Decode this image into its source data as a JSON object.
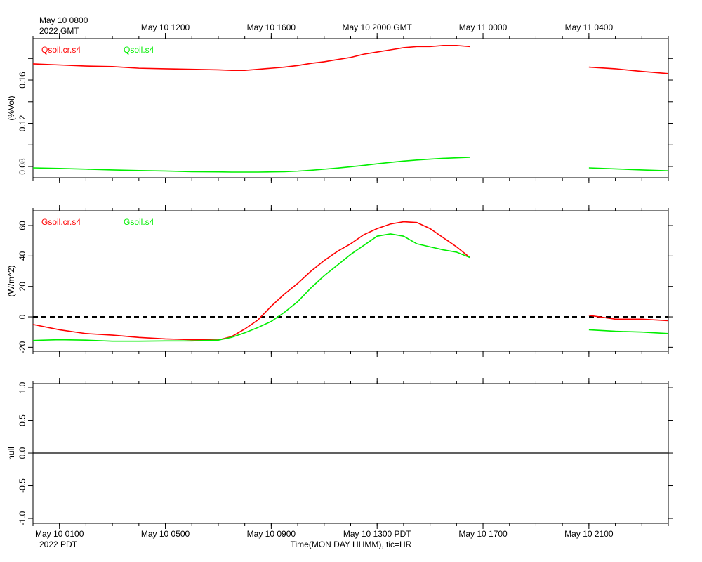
{
  "x_axis": {
    "xlim": [
      0,
      24
    ],
    "xticks": [
      {
        "value": 1,
        "label": "May 10 0100"
      },
      {
        "value": 5,
        "label": "May 10 0500"
      },
      {
        "value": 9,
        "label": "May 10 0900"
      },
      {
        "value": 13,
        "label": "May 10 1300 PDT"
      },
      {
        "value": 17,
        "label": "May 10 1700"
      },
      {
        "value": 21,
        "label": "May 10 2100"
      }
    ],
    "x2ticks": [
      {
        "value": 1,
        "label": "May 10 0800"
      },
      {
        "value": 5,
        "label": "May 10 1200"
      },
      {
        "value": 9,
        "label": "May 10 1600"
      },
      {
        "value": 13,
        "label": "May 10 2000 GMT"
      },
      {
        "value": 17,
        "label": "May 11 0000"
      },
      {
        "value": 21,
        "label": "May 11 0400"
      }
    ],
    "xminorticks": [
      0,
      1,
      2,
      3,
      4,
      5,
      6,
      7,
      8,
      9,
      10,
      11,
      12,
      13,
      14,
      15,
      16,
      17,
      18,
      19,
      20,
      21,
      22,
      23,
      24
    ],
    "year_label": "2022 PDT",
    "year2_label": "2022 GMT",
    "xlabel": "Time(MON DAY HHMM), tic=HR"
  },
  "chart_data": [
    {
      "type": "line",
      "ylabel": "(%Vol)",
      "ylim": [
        0.0696,
        0.1984
      ],
      "yticks": [
        0.08,
        0.12,
        0.16
      ],
      "yminorticks": [
        0.1,
        0.14,
        0.18
      ],
      "x": [
        0,
        1,
        2,
        3,
        4,
        5,
        6,
        7,
        7.5,
        8,
        8.5,
        9,
        9.5,
        10,
        10.5,
        11,
        11.5,
        12,
        12.5,
        13,
        13.5,
        14,
        14.5,
        15,
        15.5,
        16,
        16.5,
        19,
        21,
        22,
        23,
        24
      ],
      "series": [
        {
          "name": "Qsoil.cr.s4",
          "color": "#ff0000",
          "values": [
            0.175,
            0.174,
            0.173,
            0.1725,
            0.171,
            0.1705,
            0.17,
            0.1695,
            0.169,
            0.169,
            0.17,
            0.171,
            0.172,
            0.1735,
            0.1755,
            0.177,
            0.179,
            0.181,
            0.184,
            0.186,
            0.188,
            0.19,
            0.191,
            0.191,
            0.192,
            0.192,
            0.191,
            null,
            0.172,
            0.1705,
            0.168,
            0.166
          ]
        },
        {
          "name": "Qsoil.s4",
          "color": "#00ee00",
          "values": [
            0.0787,
            0.0782,
            0.0775,
            0.0768,
            0.0762,
            0.0758,
            0.0752,
            0.075,
            0.0748,
            0.0748,
            0.0748,
            0.075,
            0.0752,
            0.0757,
            0.0765,
            0.0775,
            0.0785,
            0.0797,
            0.081,
            0.0825,
            0.0838,
            0.085,
            0.086,
            0.0868,
            0.0875,
            0.088,
            0.0885,
            null,
            0.0787,
            0.0778,
            0.0768,
            0.076
          ]
        }
      ]
    },
    {
      "type": "line",
      "ylabel": "(W/m^2)",
      "ylim": [
        -22.6,
        69.7
      ],
      "yticks": [
        -20,
        0,
        20,
        40,
        60
      ],
      "hline": {
        "value": 0,
        "dashed": true
      },
      "x": [
        0,
        1,
        2,
        3,
        4,
        5,
        6,
        7,
        7.5,
        8,
        8.5,
        9,
        9.5,
        10,
        10.5,
        11,
        11.5,
        12,
        12.5,
        13,
        13.5,
        14,
        14.5,
        15,
        15.5,
        16,
        16.5,
        19,
        21,
        22,
        23,
        24
      ],
      "series": [
        {
          "name": "Gsoil.cr.s4",
          "color": "#ff0000",
          "values": [
            -5,
            -8.5,
            -11,
            -12,
            -13.5,
            -14.5,
            -15,
            -15.2,
            -13,
            -8,
            -2,
            7,
            15,
            22,
            30,
            37,
            43,
            48,
            54,
            58,
            61,
            62.5,
            62,
            58,
            52,
            46,
            39,
            null,
            1,
            -1.5,
            -1.5,
            -2.5
          ]
        },
        {
          "name": "Gsoil.s4",
          "color": "#00ee00",
          "values": [
            -15.5,
            -15,
            -15.3,
            -16,
            -16,
            -15.8,
            -15.8,
            -15.3,
            -13.5,
            -10.5,
            -7,
            -3,
            3,
            10,
            19,
            27,
            34,
            41,
            47,
            53,
            54.5,
            53,
            48,
            46,
            44,
            42.5,
            39,
            null,
            -8.5,
            -9.5,
            -10,
            -11
          ]
        }
      ]
    },
    {
      "type": "line",
      "ylabel": "null",
      "ylim": [
        -1.075,
        1.065
      ],
      "yticks": [
        {
          "value": -1,
          "label": "-1.0"
        },
        {
          "value": -0.5,
          "label": "-0.5"
        },
        {
          "value": 0,
          "label": "0.0"
        },
        {
          "value": 0.5,
          "label": "0.5"
        },
        {
          "value": 1,
          "label": "1.0"
        }
      ],
      "hline": {
        "value": 0,
        "dashed": false
      },
      "x": [],
      "series": []
    }
  ]
}
